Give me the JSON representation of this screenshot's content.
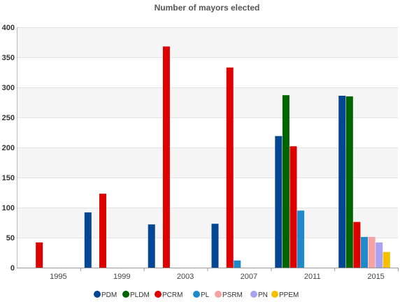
{
  "chart_data": {
    "type": "bar",
    "title": "Number of mayors elected",
    "xlabel": "",
    "ylabel": "",
    "categories": [
      "1995",
      "1999",
      "2003",
      "2007",
      "2011",
      "2015"
    ],
    "ylim": [
      0,
      400
    ],
    "yticks": [
      0,
      50,
      100,
      150,
      200,
      250,
      300,
      350,
      400
    ],
    "grid": true,
    "alternating_bands": true,
    "legend_position": "bottom",
    "series": [
      {
        "name": "PDM",
        "color": "#034694",
        "values": [
          0,
          92,
          72,
          73,
          219,
          286
        ]
      },
      {
        "name": "PLDM",
        "color": "#006400",
        "values": [
          0,
          0,
          0,
          0,
          287,
          285
        ]
      },
      {
        "name": "PCRM",
        "color": "#dd0000",
        "values": [
          42,
          123,
          368,
          333,
          202,
          76
        ]
      },
      {
        "name": "PL",
        "color": "#1f8ac9",
        "values": [
          0,
          0,
          0,
          12,
          95,
          51
        ]
      },
      {
        "name": "PSRM",
        "color": "#f4a2a2",
        "values": [
          0,
          0,
          0,
          0,
          0,
          51
        ]
      },
      {
        "name": "PN",
        "color": "#a9a2f0",
        "values": [
          0,
          0,
          0,
          0,
          0,
          42
        ]
      },
      {
        "name": "PPEM",
        "color": "#f6c000",
        "values": [
          0,
          0,
          0,
          0,
          0,
          26
        ]
      }
    ]
  }
}
